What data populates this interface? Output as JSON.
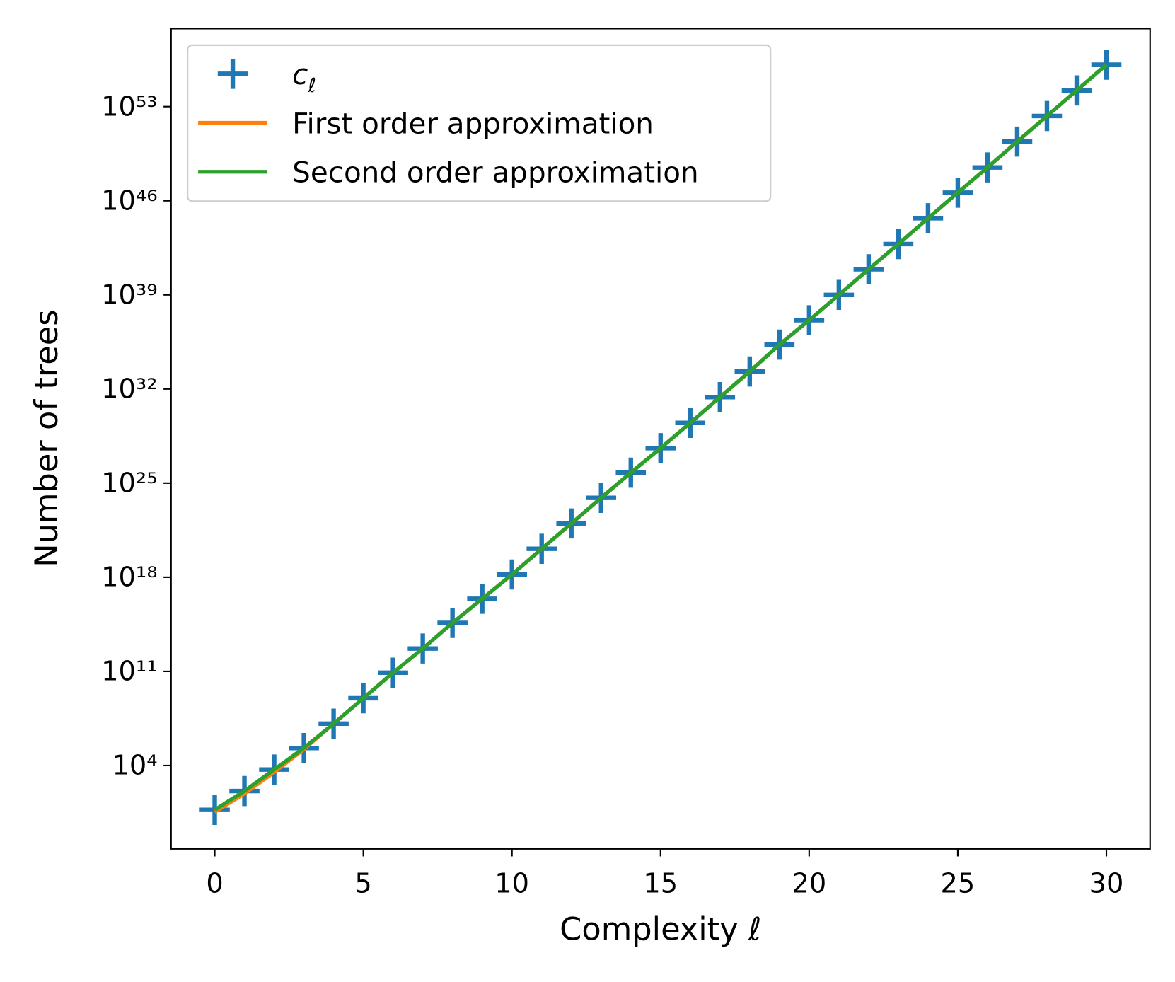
{
  "chart_data": {
    "type": "line",
    "xlabel": "Complexity ℓ",
    "ylabel": "Number of trees",
    "xlim": [
      -1.47,
      31.47
    ],
    "ylim": [
      0.0063,
      6.3e+58
    ],
    "yscale": "log",
    "xticks": [
      0,
      5,
      10,
      15,
      20,
      25,
      30
    ],
    "yticks": [
      {
        "value": 10000.0,
        "label": "10⁴"
      },
      {
        "value": 100000000000.0,
        "label": "10¹¹"
      },
      {
        "value": 1e+18,
        "label": "10¹⁸"
      },
      {
        "value": 1e+25,
        "label": "10²⁵"
      },
      {
        "value": 1e+32,
        "label": "10³²"
      },
      {
        "value": 1e+39,
        "label": "10³⁹"
      },
      {
        "value": 1e+46,
        "label": "10⁴⁶"
      },
      {
        "value": 1e+53,
        "label": "10⁵³"
      }
    ],
    "legend": "upper left",
    "x": [
      0,
      1,
      2,
      3,
      4,
      5,
      6,
      7,
      8,
      9,
      10,
      11,
      12,
      13,
      14,
      15,
      16,
      17,
      18,
      19,
      20,
      21,
      22,
      23,
      24,
      25,
      26,
      27,
      28,
      29,
      30
    ],
    "series": [
      {
        "name": "c_ℓ",
        "color": "#1f77b4",
        "marker": "+",
        "values": [
          5,
          126,
          5000,
          200000,
          13000000.0,
          1000000000.0,
          80000000000.0,
          5000000000000.0,
          400000000000000.0,
          2.5e+16,
          1.6e+18,
          1.3e+20,
          1e+22,
          8e+23,
          6e+25,
          4e+27,
          3e+29,
          2.5e+31,
          2e+33,
          2e+35,
          1.3e+37,
          1e+39,
          8e+40,
          6e+42,
          5e+44,
          4e+46,
          3e+48,
          2.5e+50,
          2e+52,
          1.6e+54,
          1.3e+56
        ]
      },
      {
        "name": "First order approximation",
        "color": "#ff7f0e",
        "values": [
          3.5,
          80,
          3200,
          160000,
          13000000.0,
          1000000000.0,
          80000000000.0,
          5000000000000.0,
          400000000000000.0,
          2.5e+16,
          1.6e+18,
          1.3e+20,
          1e+22,
          8e+23,
          6e+25,
          4e+27,
          3e+29,
          2.5e+31,
          2e+33,
          2e+35,
          1.3e+37,
          1e+39,
          8e+40,
          6e+42,
          5e+44,
          4e+46,
          3e+48,
          2.5e+50,
          2e+52,
          1.6e+54,
          1.3e+56
        ]
      },
      {
        "name": "Second order approximation",
        "color": "#2ca02c",
        "values": [
          5,
          126,
          5000,
          200000,
          13000000.0,
          1000000000.0,
          80000000000.0,
          5000000000000.0,
          400000000000000.0,
          2.5e+16,
          1.6e+18,
          1.3e+20,
          1e+22,
          8e+23,
          6e+25,
          4e+27,
          3e+29,
          2.5e+31,
          2e+33,
          2e+35,
          1.3e+37,
          1e+39,
          8e+40,
          6e+42,
          5e+44,
          4e+46,
          3e+48,
          2.5e+50,
          2e+52,
          1.6e+54,
          1.3e+56
        ]
      }
    ]
  }
}
